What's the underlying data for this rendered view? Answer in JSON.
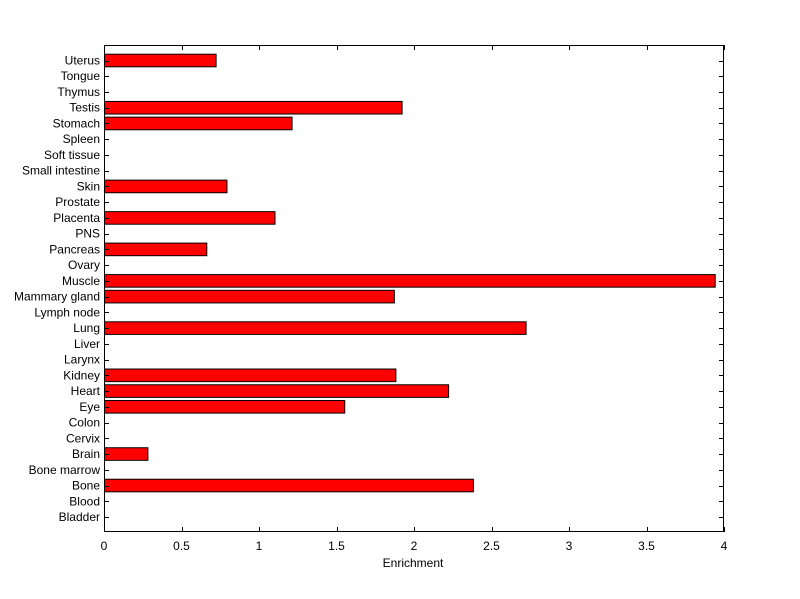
{
  "chart_data": {
    "type": "bar",
    "orientation": "horizontal",
    "title": "",
    "xlabel": "Enrichment",
    "ylabel": "",
    "xlim": [
      0,
      4
    ],
    "xticks": [
      0,
      0.5,
      1,
      1.5,
      2,
      2.5,
      3,
      3.5,
      4
    ],
    "xtick_labels": [
      "0",
      "0.5",
      "1",
      "1.5",
      "2",
      "2.5",
      "3",
      "3.5",
      "4"
    ],
    "grid": false,
    "legend": "none",
    "bar_color": "#ff0000",
    "bar_edge_color": "#000000",
    "categories": [
      "Bladder",
      "Blood",
      "Bone",
      "Bone marrow",
      "Brain",
      "Cervix",
      "Colon",
      "Eye",
      "Heart",
      "Kidney",
      "Larynx",
      "Liver",
      "Lung",
      "Lymph node",
      "Mammary gland",
      "Muscle",
      "Ovary",
      "Pancreas",
      "PNS",
      "Placenta",
      "Prostate",
      "Skin",
      "Small intestine",
      "Soft tissue",
      "Spleen",
      "Stomach",
      "Testis",
      "Thymus",
      "Tongue",
      "Uterus"
    ],
    "values": [
      0,
      0,
      2.38,
      0,
      0.28,
      0,
      0,
      1.55,
      2.22,
      1.88,
      0,
      0,
      2.72,
      0,
      1.87,
      3.94,
      0,
      0.66,
      0,
      1.1,
      0,
      0.79,
      0,
      0,
      0,
      1.21,
      1.92,
      0,
      0,
      0.72
    ]
  }
}
